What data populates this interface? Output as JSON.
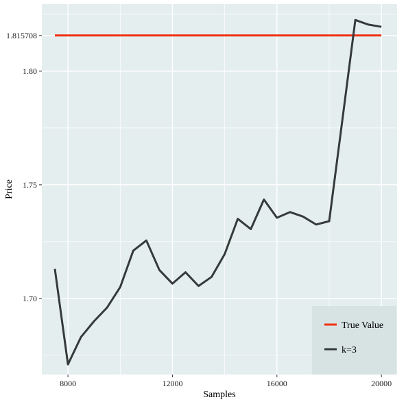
{
  "chart_data": {
    "type": "line",
    "xlabel": "Samples",
    "ylabel": "Price",
    "xlim": [
      7000,
      20600
    ],
    "ylim": [
      1.6665,
      1.8295
    ],
    "x_ticks": [
      8000,
      12000,
      16000,
      20000
    ],
    "x_tick_labels": [
      "8000",
      "12000",
      "16000",
      "20000"
    ],
    "y_ticks": [
      1.7,
      1.75,
      1.8,
      1.815708
    ],
    "y_tick_labels": [
      "1.70",
      "1.75",
      "1.80",
      "1.815708"
    ],
    "grid": true,
    "legend_position": "bottom-right",
    "colors": {
      "panel": "#E5EEEE",
      "grid": "#FFFFFF",
      "true_value": "#F03010",
      "k3": "#353A3A",
      "legend_bg": "#D7E3E3"
    },
    "series": [
      {
        "name": "True Value",
        "color": "#F03010",
        "x": [
          7500,
          20000
        ],
        "values": [
          1.815708,
          1.815708
        ]
      },
      {
        "name": "k=3",
        "color": "#353A3A",
        "x": [
          7500,
          8000,
          8500,
          9000,
          9500,
          10000,
          10500,
          11000,
          11500,
          12000,
          12500,
          13000,
          13500,
          14000,
          14500,
          15000,
          15500,
          16000,
          16500,
          17000,
          17500,
          18000,
          18500,
          19000,
          19500,
          20000
        ],
        "values": [
          1.713,
          1.671,
          1.683,
          1.69,
          1.696,
          1.705,
          1.721,
          1.7255,
          1.7125,
          1.7065,
          1.7115,
          1.7055,
          1.7095,
          1.7195,
          1.735,
          1.7305,
          1.7435,
          1.7355,
          1.738,
          1.736,
          1.7325,
          1.734,
          1.778,
          1.8225,
          1.8205,
          1.8195
        ]
      }
    ]
  }
}
